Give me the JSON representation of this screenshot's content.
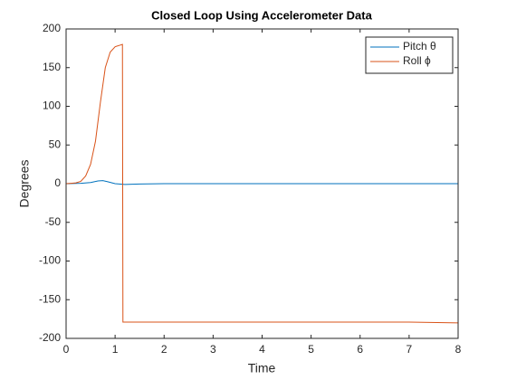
{
  "chart_data": {
    "type": "line",
    "title": "Closed Loop Using Accelerometer Data",
    "x_label": "Time",
    "y_label": "Degrees",
    "xlim": [
      0,
      8
    ],
    "ylim": [
      -200,
      200
    ],
    "xticks": [
      0,
      1,
      2,
      3,
      4,
      5,
      6,
      7,
      8
    ],
    "yticks": [
      -200,
      -150,
      -100,
      -50,
      0,
      50,
      100,
      150,
      200
    ],
    "legend": "upper right",
    "series": [
      {
        "name": "Pitch θ",
        "color": "#0072bd",
        "x": [
          0,
          0.3,
          0.5,
          0.65,
          0.75,
          0.85,
          1.0,
          1.2,
          1.5,
          2,
          4,
          6,
          8
        ],
        "values": [
          0,
          0.5,
          1.5,
          3.5,
          4,
          2.5,
          0,
          -1,
          -0.5,
          0,
          0,
          0,
          0
        ]
      },
      {
        "name": "Roll ϕ",
        "color": "#d95319",
        "x": [
          0,
          0.1,
          0.2,
          0.3,
          0.4,
          0.5,
          0.6,
          0.7,
          0.8,
          0.9,
          1.0,
          1.1,
          1.15,
          1.16,
          1.3,
          2,
          3,
          4,
          5,
          6,
          7,
          8
        ],
        "values": [
          0,
          0.5,
          1,
          3,
          10,
          25,
          55,
          105,
          150,
          170,
          177,
          179,
          180,
          -179,
          -179,
          -179,
          -179,
          -179,
          -179,
          -179,
          -179,
          -180
        ]
      }
    ]
  }
}
